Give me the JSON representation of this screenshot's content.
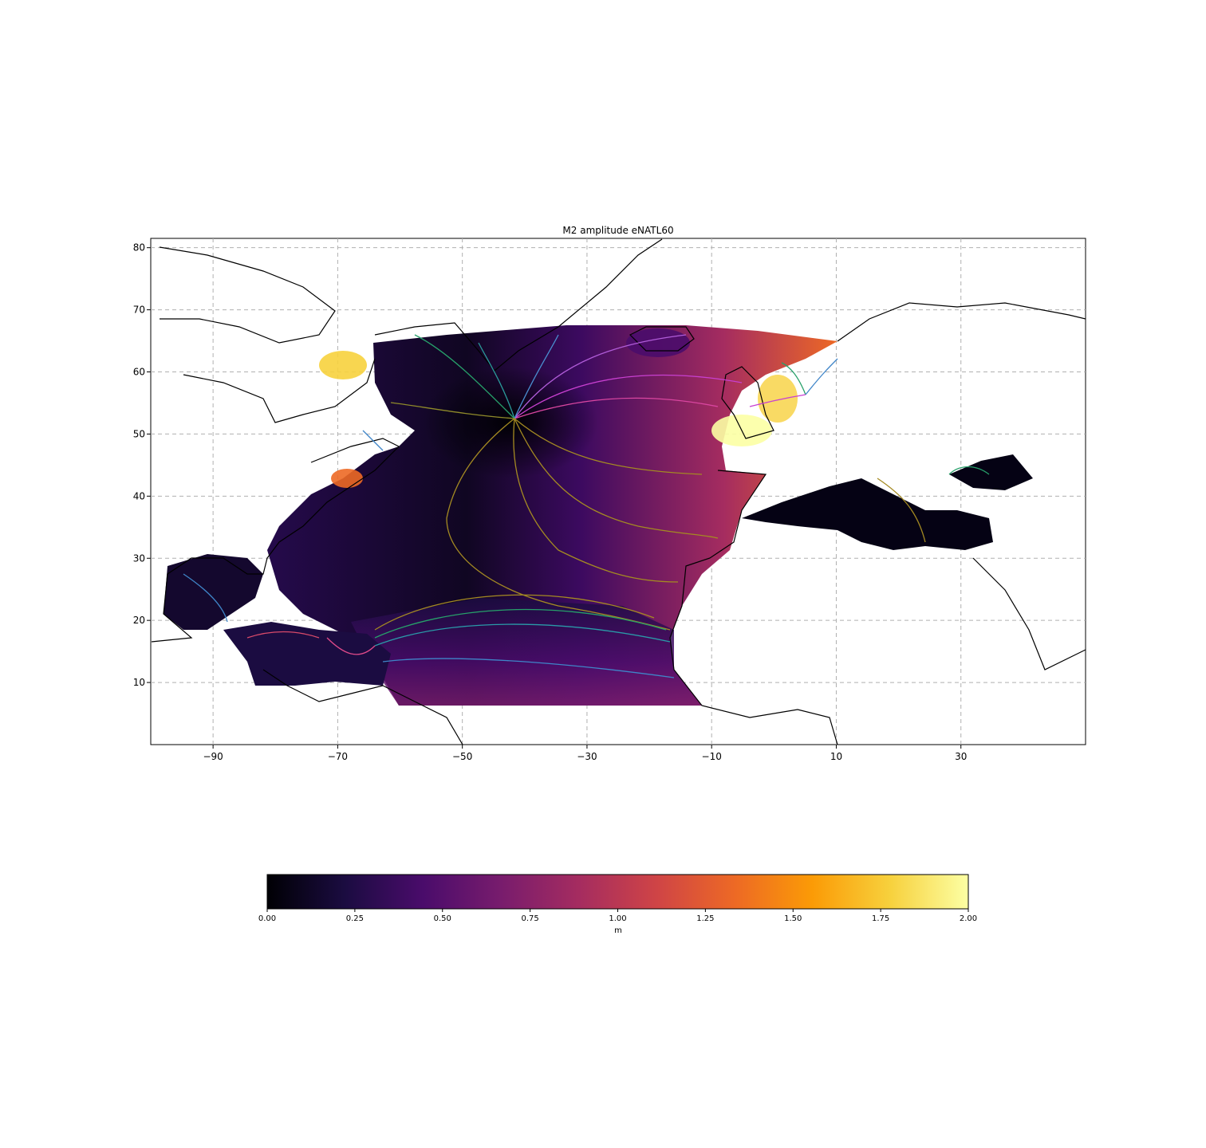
{
  "title": "M2 amplitude eNATL60",
  "map": {
    "x_ticks": [
      -90,
      -70,
      -50,
      -30,
      -10,
      10,
      30
    ],
    "y_ticks": [
      10,
      20,
      30,
      40,
      50,
      60,
      70,
      80
    ],
    "x_tick_labels": [
      "−90",
      "−70",
      "−50",
      "−30",
      "−10",
      "10",
      "30"
    ],
    "y_tick_labels": [
      "10",
      "20",
      "30",
      "40",
      "50",
      "60",
      "70",
      "80"
    ],
    "lon_range": [
      -100,
      50
    ],
    "lat_range": [
      0,
      81.5
    ],
    "grid": true
  },
  "colorbar": {
    "label": "m",
    "ticks": [
      "0.00",
      "0.25",
      "0.50",
      "0.75",
      "1.00",
      "1.25",
      "1.50",
      "1.75",
      "2.00"
    ],
    "range": [
      0,
      2
    ],
    "colormap": "inferno",
    "stops": [
      "#000004",
      "#1b0c41",
      "#4a0c6b",
      "#781c6d",
      "#a52c60",
      "#cf4446",
      "#ed6925",
      "#fb9b06",
      "#f7d13d",
      "#fcffa4"
    ]
  },
  "chart_data": {
    "type": "heatmap",
    "title": "M2 amplitude eNATL60",
    "xlim": [
      -100,
      50
    ],
    "ylim": [
      0,
      81.5
    ],
    "colorbar_label": "m",
    "colorbar_range": [
      0,
      2
    ]
  }
}
